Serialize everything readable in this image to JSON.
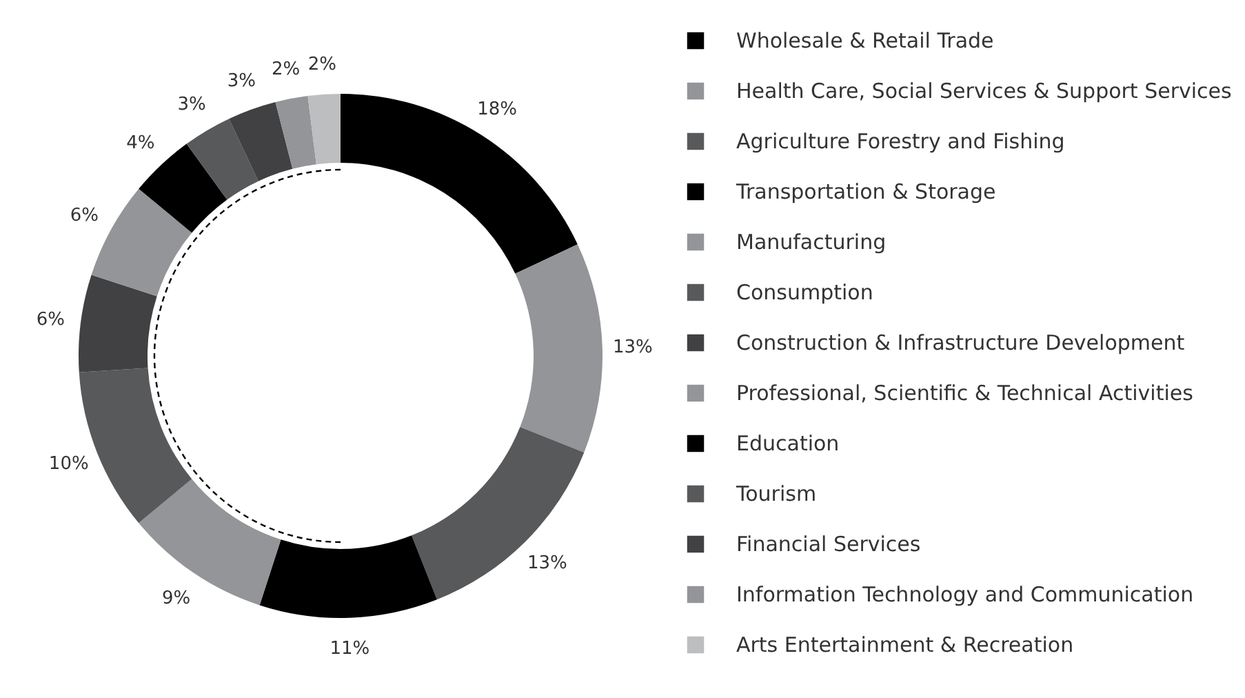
{
  "chart_data": {
    "type": "donut",
    "categories": [
      "Wholesale & Retail Trade",
      "Health Care, Social Services & Support Services",
      "Agriculture  Forestry and Fishing",
      "Transportation & Storage",
      "Manufacturing",
      "Consumption",
      "Construction & Infrastructure Development",
      "Professional, Scientific & Technical Activities",
      "Education",
      "Tourism",
      "Financial Services",
      "Information Technology and Communication",
      "Arts  Entertainment & Recreation"
    ],
    "values": [
      18,
      13,
      13,
      11,
      9,
      10,
      6,
      6,
      4,
      3,
      3,
      2,
      2
    ],
    "colors": [
      "#000000",
      "#939598",
      "#58595b",
      "#000000",
      "#939598",
      "#58595b",
      "#414042",
      "#939598",
      "#000000",
      "#58595b",
      "#414042",
      "#939598",
      "#bcbec0"
    ],
    "value_labels": [
      "18%",
      "13%",
      "13%",
      "11%",
      "9%",
      "10%",
      "6%",
      "6%",
      "4%",
      "3%",
      "3%",
      "2%",
      "2%"
    ],
    "legend": "right"
  }
}
